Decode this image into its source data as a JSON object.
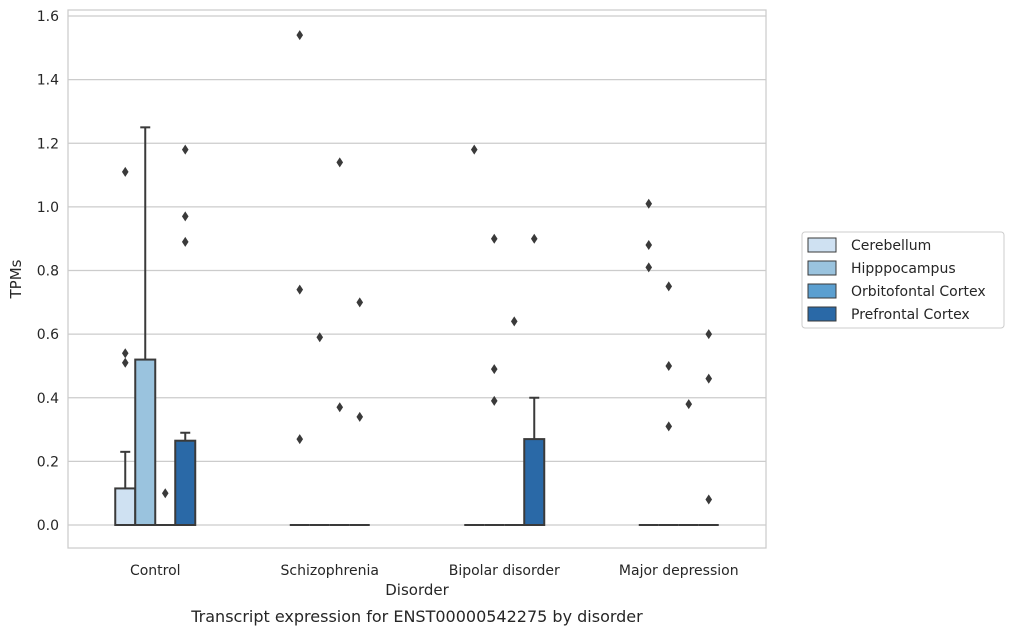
{
  "caption": "Transcript expression for ENST00000542275 by disorder",
  "chart_data": {
    "type": "box",
    "title": "",
    "xlabel": "Disorder",
    "ylabel": "TPMs",
    "ylim": [
      -0.075,
      1.62
    ],
    "yticks": [
      "0.0",
      "0.2",
      "0.4",
      "0.6",
      "0.8",
      "1.0",
      "1.2",
      "1.4",
      "1.6"
    ],
    "ytick_values": [
      0,
      0.2,
      0.4,
      0.6,
      0.8,
      1.0,
      1.2,
      1.4,
      1.6
    ],
    "grid": true,
    "legend_position": "right",
    "categories": [
      "Control",
      "Schizophrenia",
      "Bipolar disorder",
      "Major depression"
    ],
    "series": [
      {
        "name": "Cerebellum",
        "color": "#cfe1f2",
        "boxes": [
          {
            "q1": 0,
            "median": 0,
            "q3": 0.115,
            "whisker_low": 0,
            "whisker_high": 0.23,
            "outliers": [
              0.51,
              0.54,
              1.11
            ]
          },
          {
            "q1": 0,
            "median": 0,
            "q3": 0,
            "whisker_low": 0,
            "whisker_high": 0,
            "outliers": [
              0.27,
              0.74,
              1.54
            ]
          },
          {
            "q1": 0,
            "median": 0,
            "q3": 0,
            "whisker_low": 0,
            "whisker_high": 0,
            "outliers": [
              1.18
            ]
          },
          {
            "q1": 0,
            "median": 0,
            "q3": 0,
            "whisker_low": 0,
            "whisker_high": 0,
            "outliers": [
              0.81,
              0.88,
              1.01
            ]
          }
        ]
      },
      {
        "name": "Hipppocampus",
        "color": "#9ac3de",
        "boxes": [
          {
            "q1": 0,
            "median": 0,
            "q3": 0.52,
            "whisker_low": 0,
            "whisker_high": 1.25,
            "outliers": []
          },
          {
            "q1": 0,
            "median": 0,
            "q3": 0,
            "whisker_low": 0,
            "whisker_high": 0,
            "outliers": [
              0.59
            ]
          },
          {
            "q1": 0,
            "median": 0,
            "q3": 0,
            "whisker_low": 0,
            "whisker_high": 0,
            "outliers": [
              0.39,
              0.49,
              0.9
            ]
          },
          {
            "q1": 0,
            "median": 0,
            "q3": 0,
            "whisker_low": 0,
            "whisker_high": 0,
            "outliers": [
              0.31,
              0.5,
              0.75
            ]
          }
        ]
      },
      {
        "name": "Orbitofontal Cortex",
        "color": "#5b9fd0",
        "boxes": [
          {
            "q1": 0,
            "median": 0,
            "q3": 0,
            "whisker_low": 0,
            "whisker_high": 0,
            "outliers": [
              0.1
            ]
          },
          {
            "q1": 0,
            "median": 0,
            "q3": 0,
            "whisker_low": 0,
            "whisker_high": 0,
            "outliers": [
              0.37,
              1.14
            ]
          },
          {
            "q1": 0,
            "median": 0,
            "q3": 0,
            "whisker_low": 0,
            "whisker_high": 0,
            "outliers": [
              0.64
            ]
          },
          {
            "q1": 0,
            "median": 0,
            "q3": 0,
            "whisker_low": 0,
            "whisker_high": 0,
            "outliers": [
              0.38
            ]
          }
        ]
      },
      {
        "name": "Prefrontal Cortex",
        "color": "#2a69a7",
        "boxes": [
          {
            "q1": 0,
            "median": 0,
            "q3": 0.265,
            "whisker_low": 0,
            "whisker_high": 0.29,
            "outliers": [
              0.89,
              0.97,
              1.18
            ]
          },
          {
            "q1": 0,
            "median": 0,
            "q3": 0,
            "whisker_low": 0,
            "whisker_high": 0,
            "outliers": [
              0.34,
              0.7
            ]
          },
          {
            "q1": 0,
            "median": 0,
            "q3": 0.27,
            "whisker_low": 0,
            "whisker_high": 0.4,
            "outliers": [
              0.9
            ]
          },
          {
            "q1": 0,
            "median": 0,
            "q3": 0,
            "whisker_low": 0,
            "whisker_high": 0,
            "outliers": [
              0.08,
              0.46,
              0.6
            ]
          }
        ]
      }
    ]
  }
}
